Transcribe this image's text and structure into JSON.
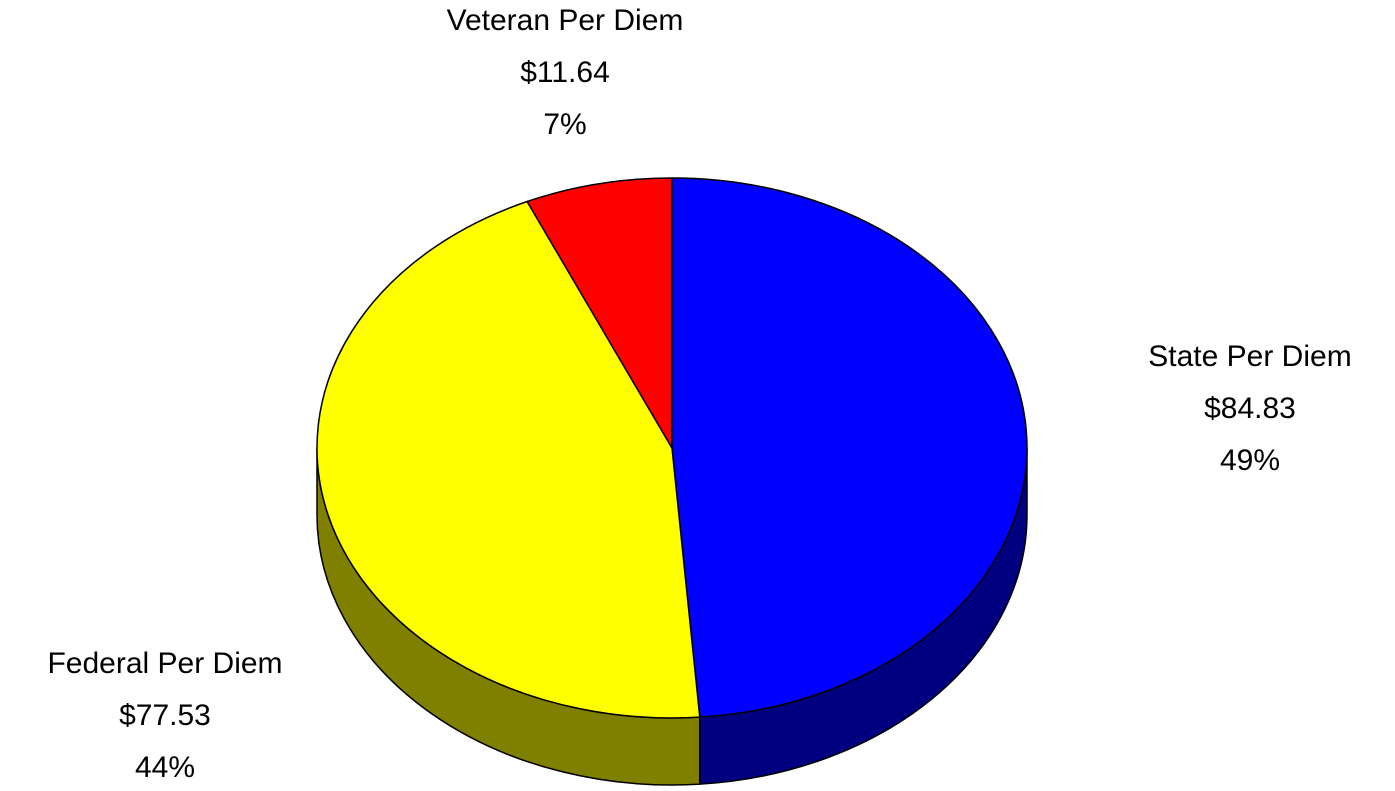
{
  "chart_data": {
    "type": "pie",
    "categories": [
      "State Per Diem",
      "Federal Per Diem",
      "Veteran Per Diem"
    ],
    "values": [
      84.83,
      77.53,
      11.64
    ],
    "value_labels": [
      "$84.83",
      "$77.53",
      "$11.64"
    ],
    "percent_labels": [
      "49%",
      "44%",
      "7%"
    ],
    "colors": [
      "#0000ff",
      "#ffff00",
      "#ff0000"
    ],
    "side_colors": [
      "#000080",
      "#808000",
      "#800000"
    ]
  }
}
